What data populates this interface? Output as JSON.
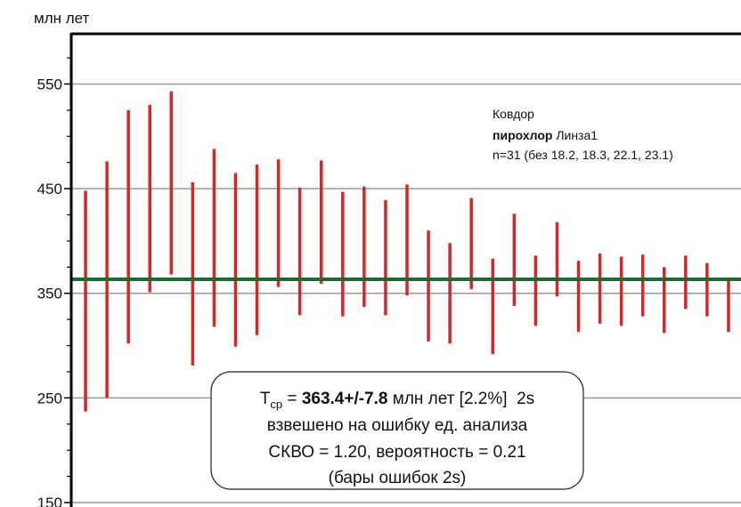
{
  "chart_data": {
    "type": "errorbar",
    "y_label": "млн лет",
    "categories": [
      null,
      null,
      null,
      null,
      null,
      null,
      null,
      null,
      null,
      null,
      null,
      null,
      null,
      null,
      null,
      null,
      null,
      null,
      null,
      null,
      null,
      null,
      null,
      null,
      null,
      null,
      null,
      null,
      null,
      null,
      null
    ],
    "low": [
      237,
      250,
      302,
      351,
      368,
      281,
      318,
      299,
      310,
      356,
      329,
      359,
      328,
      337,
      329,
      348,
      304,
      302,
      354,
      292,
      338,
      319,
      347,
      313,
      321,
      319,
      328,
      312,
      335,
      328,
      313
    ],
    "high": [
      448,
      476,
      525,
      530,
      543,
      456,
      488,
      465,
      473,
      478,
      451,
      477,
      447,
      452,
      439,
      454,
      410,
      398,
      441,
      383,
      426,
      386,
      418,
      381,
      388,
      385,
      387,
      375,
      386,
      379,
      363
    ],
    "color": "#d62728",
    "mean": 363.4,
    "mean_color": "#1e6b2e",
    "ylim": [
      150,
      598
    ],
    "yticks": [
      150,
      250,
      350,
      450,
      550
    ],
    "minor_yticks": [
      175,
      200,
      225,
      275,
      300,
      325,
      375,
      400,
      425,
      475,
      500,
      525,
      575
    ],
    "grid": true,
    "info": {
      "site": "Ковдор",
      "mineral": "пирохлор",
      "sample": "Линза1",
      "note": "n=31 (без 18.2, 18.3, 22.1, 23.1)"
    },
    "annotation": {
      "t": "T",
      "sub": "ср",
      "eq": " = ",
      "result": "363.4+/-7.8",
      "rest": " млн лет [2.2%]  2s",
      "line2": "взвешено на ошибку ед. анализа",
      "line3": "СКВО = 1.20, вероятность = 0.21",
      "line4": "(бары ошибок 2s)"
    }
  }
}
